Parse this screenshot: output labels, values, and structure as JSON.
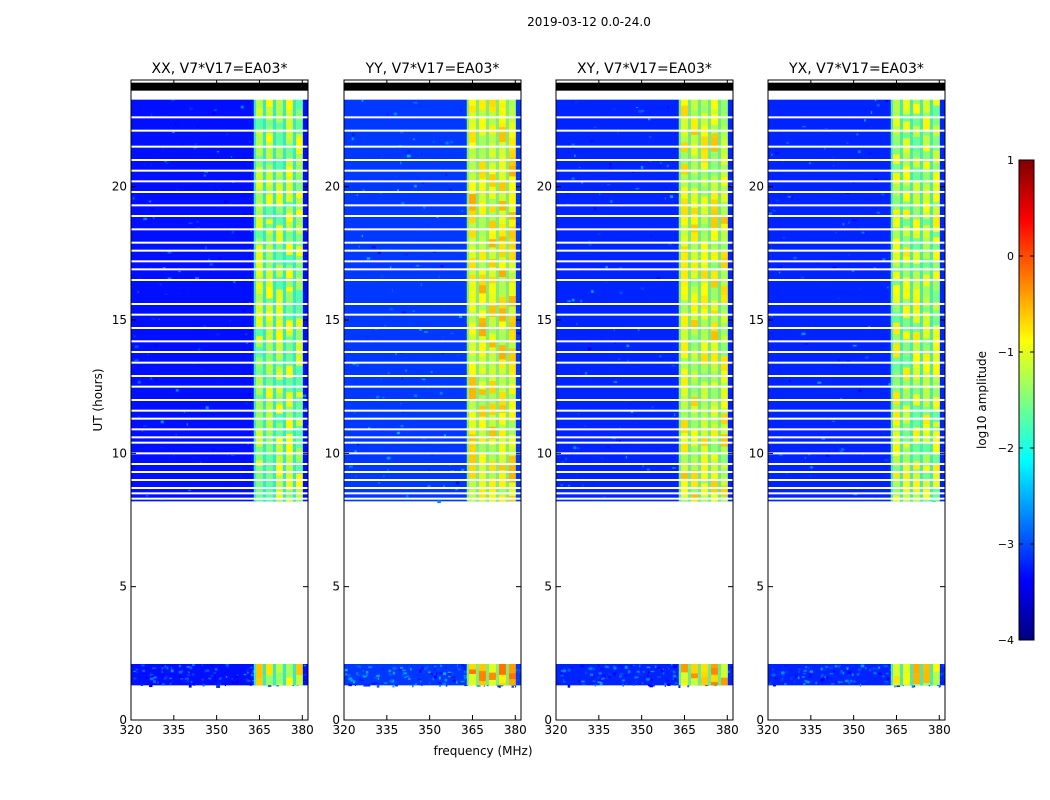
{
  "chart_data": {
    "type": "heatmap",
    "title": "2019-03-12 0.0-24.0",
    "xlabel": "frequency (MHz)",
    "ylabel": "UT (hours)",
    "xlim": [
      320,
      382
    ],
    "ylim": [
      0,
      24
    ],
    "xticks": [
      320,
      335,
      350,
      365,
      380
    ],
    "xtick_labels": [
      "320",
      "335",
      "350",
      "365",
      "380"
    ],
    "yticks": [
      0,
      5,
      10,
      15,
      20
    ],
    "ytick_labels": [
      "0",
      "5",
      "10",
      "15",
      "20"
    ],
    "panels": [
      {
        "title": "XX, V7*V17=EA03*"
      },
      {
        "title": "YY, V7*V17=EA03*"
      },
      {
        "title": "XY, V7*V17=EA03*"
      },
      {
        "title": "YX, V7*V17=EA03*"
      }
    ],
    "data_blocks_ut": [
      [
        1.3,
        2.1
      ],
      [
        8.2,
        23.3
      ]
    ],
    "flagged_rows_ut": [
      23.3,
      23.6,
      22.6,
      22.1,
      21.5,
      21.0,
      20.6,
      20.2,
      19.8,
      19.3,
      18.9,
      18.4,
      17.9,
      17.6,
      17.2,
      16.9,
      16.5,
      15.6,
      15.2,
      14.7,
      14.2,
      13.8,
      13.4,
      12.9,
      12.5,
      12.0,
      11.6,
      11.3,
      10.9,
      10.6,
      10.4,
      10.0,
      9.6,
      9.3,
      9.0,
      8.7,
      8.5,
      8.3
    ],
    "rfi_band_mhz": [
      363,
      380
    ],
    "rfi_channels_mhz": [
      365,
      368.5,
      372,
      375.5,
      379
    ],
    "colorbar": {
      "label": "log10 amplitude",
      "range": [
        -4,
        1
      ],
      "ticks": [
        -4,
        -3,
        -2,
        -1,
        0,
        1
      ],
      "tick_labels": [
        "−4",
        "−3",
        "−2",
        "−1",
        "0",
        "1"
      ],
      "colormap": [
        "#00007f",
        "#0000ff",
        "#007fff",
        "#00ffff",
        "#7fff7f",
        "#ffff00",
        "#ff7f00",
        "#ff0000",
        "#7f0000"
      ]
    },
    "panel_levels": {
      "background": [
        -3.3,
        -3.1,
        -3.2,
        -3.2
      ],
      "rfi": [
        -1.3,
        -0.9,
        -1.0,
        -1.2
      ]
    }
  }
}
